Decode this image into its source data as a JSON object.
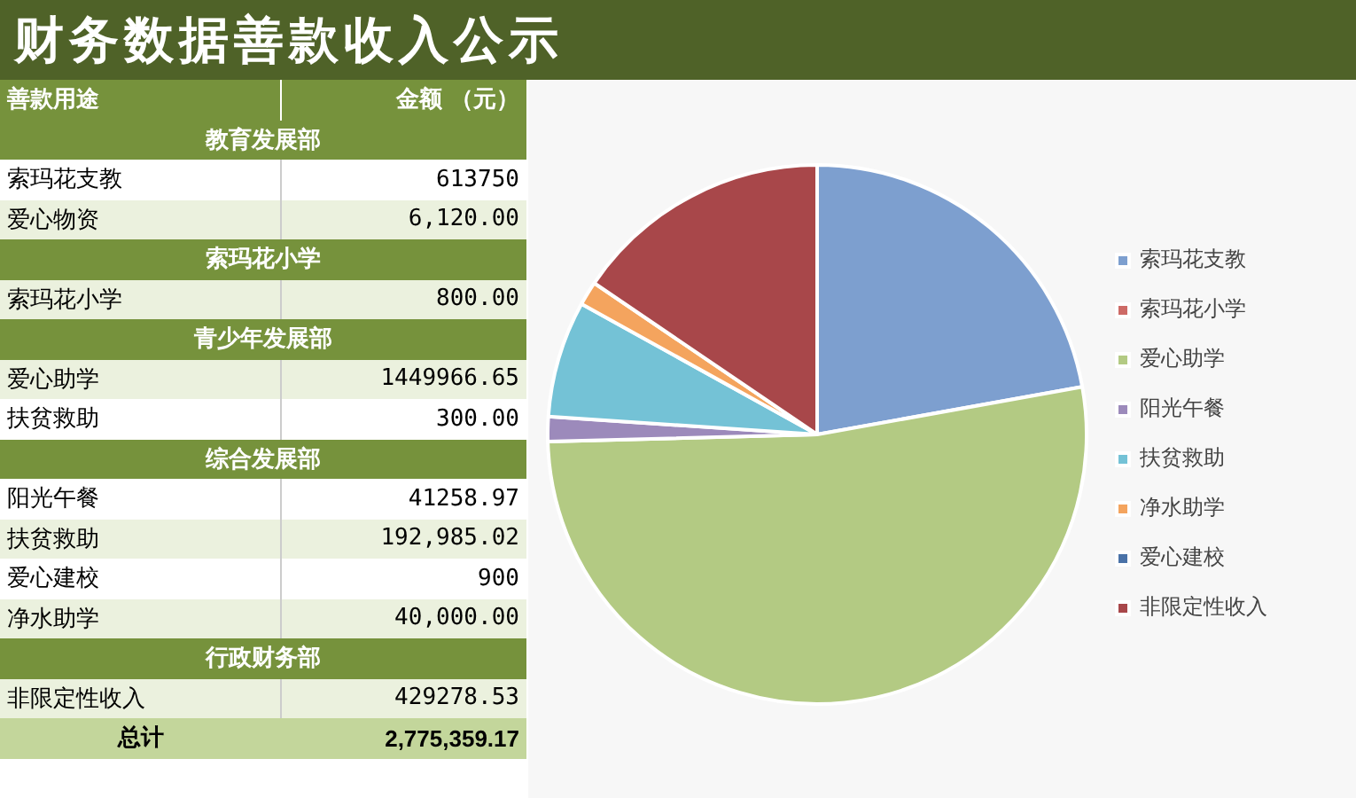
{
  "chart_data": [
    {
      "type": "other",
      "title": "财务数据善款收入公示",
      "annotations": [
        "善款用途",
        "金额 （元）",
        "教育发展部",
        "索玛花支教",
        "613750",
        "爱心物资",
        "6,120.00",
        "索玛花小学",
        "索玛花小学",
        "800.00",
        "青少年发展部",
        "爱心助学",
        "1449966.65",
        "扶贫救助",
        "300.00",
        "综合发展部",
        "阳光午餐",
        "41258.97",
        "扶贫救助",
        "192,985.02",
        "爱心建校",
        "900",
        "净水助学",
        "40,000.00",
        "行政财务部",
        "非限定性收入",
        "429278.53",
        "总计",
        "2,775,359.17"
      ]
    },
    {
      "type": "pie",
      "categories": [
        "索玛花支教",
        "索玛花小学",
        "爱心助学",
        "阳光午餐",
        "扶贫救助",
        "净水助学",
        "爱心建校",
        "非限定性收入"
      ],
      "values": [
        22.16,
        null,
        52.37,
        1.49,
        6.98,
        1.44,
        null,
        15.5
      ],
      "colors": [
        "#7d9fcf",
        "#cd6a66",
        "#b3ca83",
        "#9c8abb",
        "#74c2d6",
        "#f4a45e",
        "#4a72a8",
        "#a8474a"
      ],
      "legend": "right"
    }
  ]
}
